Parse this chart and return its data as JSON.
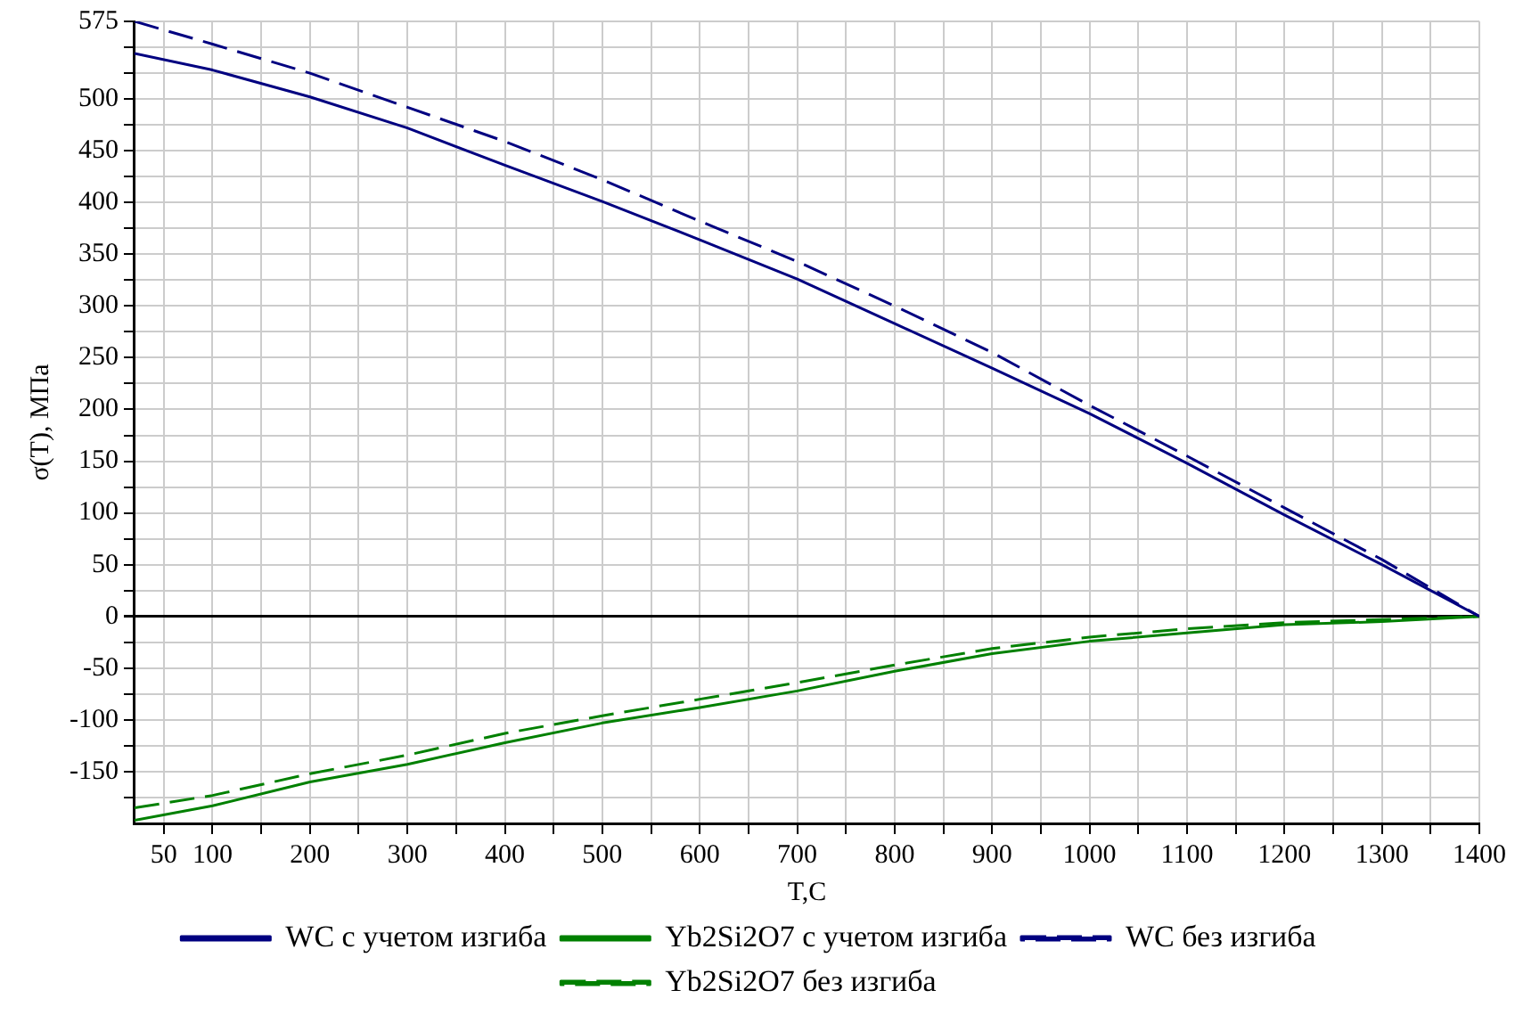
{
  "chart_data": {
    "type": "line",
    "xlabel": "T,C",
    "ylabel": "σ(T), МПа",
    "x": [
      20,
      100,
      200,
      300,
      400,
      500,
      600,
      700,
      800,
      900,
      1000,
      1100,
      1200,
      1300,
      1400
    ],
    "series": [
      {
        "name": "WC с учетом изгиба",
        "color": "#000080",
        "line_style": "solid",
        "values": [
          544,
          528,
          502,
          472,
          436,
          401,
          364,
          326,
          283,
          240,
          196,
          148,
          98,
          50,
          0
        ]
      },
      {
        "name": "Yb2Si2O7 с учетом изгиба",
        "color": "#008000",
        "line_style": "solid",
        "values": [
          -197,
          -183,
          -160,
          -143,
          -122,
          -103,
          -88,
          -72,
          -53,
          -36,
          -24,
          -16,
          -8,
          -5,
          0
        ]
      },
      {
        "name": "WC без изгиба",
        "color": "#000080",
        "line_style": "dashed",
        "values": [
          575,
          553,
          525,
          492,
          459,
          422,
          382,
          343,
          300,
          255,
          204,
          155,
          105,
          55,
          0
        ]
      },
      {
        "name": "Yb2Si2O7 без изгиба",
        "color": "#008000",
        "line_style": "dashed",
        "values": [
          -185,
          -173,
          -152,
          -134,
          -113,
          -96,
          -80,
          -64,
          -47,
          -31,
          -20,
          -12,
          -6,
          -3,
          0
        ]
      }
    ],
    "xlim": [
      20,
      1400
    ],
    "xticks": [
      50,
      100,
      {
        "value": 150,
        "label": null
      },
      200,
      {
        "value": 250,
        "label": null
      },
      300,
      {
        "value": 350,
        "label": null
      },
      400,
      {
        "value": 450,
        "label": null
      },
      500,
      {
        "value": 550,
        "label": null
      },
      600,
      {
        "value": 650,
        "label": null
      },
      700,
      {
        "value": 750,
        "label": null
      },
      800,
      {
        "value": 850,
        "label": null
      },
      900,
      {
        "value": 950,
        "label": null
      },
      1000,
      {
        "value": 1050,
        "label": null
      },
      1100,
      {
        "value": 1150,
        "label": null
      },
      1200,
      {
        "value": 1250,
        "label": null
      },
      1300,
      {
        "value": 1350,
        "label": null
      },
      1400
    ],
    "ylim": [
      -200,
      575
    ],
    "yticks": [
      {
        "value": -175,
        "label": null
      },
      -150,
      {
        "value": -125,
        "label": null
      },
      -100,
      {
        "value": -75,
        "label": null
      },
      -50,
      {
        "value": -25,
        "label": null
      },
      0,
      {
        "value": 25,
        "label": null
      },
      50,
      {
        "value": 75,
        "label": null
      },
      100,
      {
        "value": 125,
        "label": null
      },
      150,
      {
        "value": 175,
        "label": null
      },
      200,
      {
        "value": 225,
        "label": null
      },
      250,
      {
        "value": 275,
        "label": null
      },
      300,
      {
        "value": 325,
        "label": null
      },
      350,
      {
        "value": 375,
        "label": null
      },
      400,
      {
        "value": 425,
        "label": null
      },
      450,
      {
        "value": 475,
        "label": null
      },
      500,
      {
        "value": 525,
        "label": null
      },
      {
        "value": 550,
        "label": null
      },
      575
    ],
    "grid": true,
    "legend": "bottom",
    "marker": "none"
  }
}
